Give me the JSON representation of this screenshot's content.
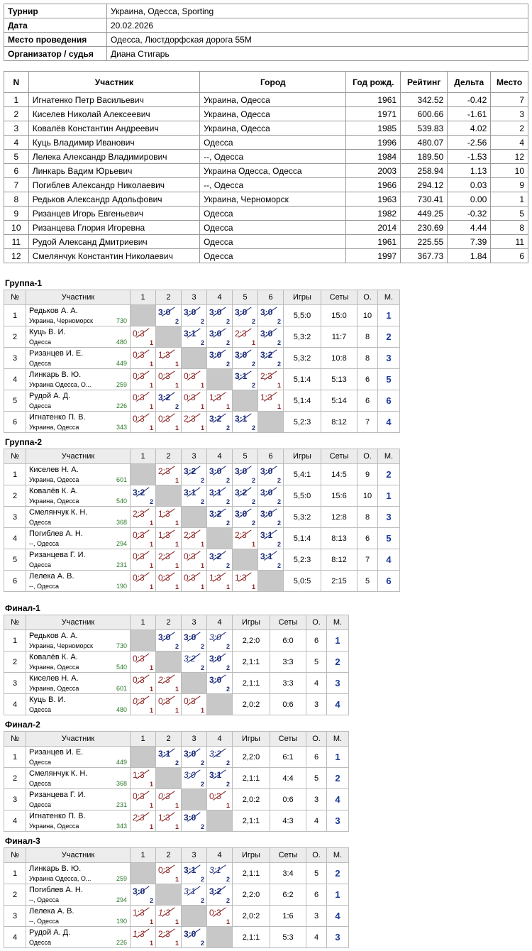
{
  "info": {
    "rows": [
      [
        "Турнир",
        "Украина, Одесса, Sporting"
      ],
      [
        "Дата",
        "20.02.2026"
      ],
      [
        "Место проведения",
        "Одесса, Люстдорфская дорога 55М"
      ],
      [
        "Организатор / судья",
        "Диана Стигарь"
      ]
    ]
  },
  "participants": {
    "columns": [
      "N",
      "Участник",
      "Город",
      "Год рожд.",
      "Рейтинг",
      "Дельта",
      "Место"
    ],
    "rows": [
      [
        1,
        "Игнатенко Петр Васильевич",
        "Украина, Одесса",
        1961,
        "342.52",
        "-0.42",
        7
      ],
      [
        2,
        "Киселев Николай Алексеевич",
        "Украина, Одесса",
        1971,
        "600.66",
        "-1.61",
        3
      ],
      [
        3,
        "Ковалёв Константин Андреевич",
        "Украина, Одесса",
        1985,
        "539.83",
        "4.02",
        2
      ],
      [
        4,
        "Куць Владимир Иванович",
        "Одесса",
        1996,
        "480.07",
        "-2.56",
        4
      ],
      [
        5,
        "Лелека Александр Владимирович",
        "--, Одесса",
        1984,
        "189.50",
        "-1.53",
        12
      ],
      [
        6,
        "Линкарь Вадим Юрьевич",
        "Украина Одесса, Одесса",
        2003,
        "258.94",
        "1.13",
        10
      ],
      [
        7,
        "Погиблев Александр Николаевич",
        "--, Одесса",
        1966,
        "294.12",
        "0.03",
        9
      ],
      [
        8,
        "Редьков Александр Адольфович",
        "Украина, Черноморск",
        1963,
        "730.41",
        "0.00",
        1
      ],
      [
        9,
        "Ризанцев Игорь Евгеньевич",
        "Одесса",
        1982,
        "449.25",
        "-0.32",
        5
      ],
      [
        10,
        "Ризанцева Глория Игоревна",
        "Одесса",
        2014,
        "230.69",
        "4.44",
        8
      ],
      [
        11,
        "Рудой Александ Дмитриевич",
        "Одесса",
        1961,
        "225.55",
        "7.39",
        11
      ],
      [
        12,
        "Смелянчук Константин Николаевич",
        "Одесса",
        1997,
        "367.73",
        "1.84",
        6
      ]
    ]
  },
  "groups": [
    {
      "title": "Группа-1",
      "columns": [
        "№",
        "Участник",
        "1",
        "2",
        "3",
        "4",
        "5",
        "6",
        "Игры",
        "Сеты",
        "О.",
        "М."
      ],
      "rows": [
        {
          "n": 1,
          "name": "Редьков А. А.",
          "city": "Украина, Черноморск",
          "rating": 730,
          "results": [
            null,
            {
              "score": "3:0",
              "pts": 2
            },
            {
              "score": "3:0",
              "pts": 2
            },
            {
              "score": "3:0",
              "pts": 2
            },
            {
              "score": "3:0",
              "pts": 2
            },
            {
              "score": "3:0",
              "pts": 2
            }
          ],
          "games": "5,5:0",
          "sets": "15:0",
          "points": 10,
          "place": 1
        },
        {
          "n": 2,
          "name": "Куць В. И.",
          "city": "Одесса",
          "rating": 480,
          "results": [
            {
              "score": "0:3",
              "pts": 1
            },
            null,
            {
              "score": "3:1",
              "pts": 2
            },
            {
              "score": "3:0",
              "pts": 2
            },
            {
              "score": "2:3",
              "pts": 1
            },
            {
              "score": "3:0",
              "pts": 2
            }
          ],
          "games": "5,3:2",
          "sets": "11:7",
          "points": 8,
          "place": 2
        },
        {
          "n": 3,
          "name": "Ризанцев И. Е.",
          "city": "Одесса",
          "rating": 449,
          "results": [
            {
              "score": "0:3",
              "pts": 1
            },
            {
              "score": "1:3",
              "pts": 1
            },
            null,
            {
              "score": "3:0",
              "pts": 2
            },
            {
              "score": "3:0",
              "pts": 2
            },
            {
              "score": "3:2",
              "pts": 2
            }
          ],
          "games": "5,3:2",
          "sets": "10:8",
          "points": 8,
          "place": 3
        },
        {
          "n": 4,
          "name": "Линкарь В. Ю.",
          "city": "Украина Одесса, О...",
          "rating": 259,
          "results": [
            {
              "score": "0:3",
              "pts": 1
            },
            {
              "score": "0:3",
              "pts": 1
            },
            {
              "score": "0:3",
              "pts": 1
            },
            null,
            {
              "score": "3:1",
              "pts": 2
            },
            {
              "score": "2:3",
              "pts": 1
            }
          ],
          "games": "5,1:4",
          "sets": "5:13",
          "points": 6,
          "place": 5
        },
        {
          "n": 5,
          "name": "Рудой А. Д.",
          "city": "Одесса",
          "rating": 226,
          "results": [
            {
              "score": "0:3",
              "pts": 1
            },
            {
              "score": "3:2",
              "pts": 2
            },
            {
              "score": "0:3",
              "pts": 1
            },
            {
              "score": "1:3",
              "pts": 1
            },
            null,
            {
              "score": "1:3",
              "pts": 1
            }
          ],
          "games": "5,1:4",
          "sets": "5:14",
          "points": 6,
          "place": 6
        },
        {
          "n": 6,
          "name": "Игнатенко П. В.",
          "city": "Украина, Одесса",
          "rating": 343,
          "results": [
            {
              "score": "0:3",
              "pts": 1
            },
            {
              "score": "0:3",
              "pts": 1
            },
            {
              "score": "2:3",
              "pts": 1
            },
            {
              "score": "3:2",
              "pts": 2
            },
            {
              "score": "3:1",
              "pts": 2
            },
            null
          ],
          "games": "5,2:3",
          "sets": "8:12",
          "points": 7,
          "place": 4
        }
      ]
    },
    {
      "title": "Группа-2",
      "columns": [
        "№",
        "Участник",
        "1",
        "2",
        "3",
        "4",
        "5",
        "6",
        "Игры",
        "Сеты",
        "О.",
        "М."
      ],
      "rows": [
        {
          "n": 1,
          "name": "Киселев Н. А.",
          "city": "Украина, Одесса",
          "rating": 601,
          "results": [
            null,
            {
              "score": "2:3",
              "pts": 1
            },
            {
              "score": "3:2",
              "pts": 2
            },
            {
              "score": "3:0",
              "pts": 2
            },
            {
              "score": "3:0",
              "pts": 2
            },
            {
              "score": "3:0",
              "pts": 2
            }
          ],
          "games": "5,4:1",
          "sets": "14:5",
          "points": 9,
          "place": 2
        },
        {
          "n": 2,
          "name": "Ковалёв К. А.",
          "city": "Украина, Одесса",
          "rating": 540,
          "results": [
            {
              "score": "3:2",
              "pts": 2
            },
            null,
            {
              "score": "3:1",
              "pts": 2
            },
            {
              "score": "3:1",
              "pts": 2
            },
            {
              "score": "3:2",
              "pts": 2
            },
            {
              "score": "3:0",
              "pts": 2
            }
          ],
          "games": "5,5:0",
          "sets": "15:6",
          "points": 10,
          "place": 1
        },
        {
          "n": 3,
          "name": "Смелянчук К. Н.",
          "city": "Одесса",
          "rating": 368,
          "results": [
            {
              "score": "2:3",
              "pts": 1
            },
            {
              "score": "1:3",
              "pts": 1
            },
            null,
            {
              "score": "3:2",
              "pts": 2
            },
            {
              "score": "3:0",
              "pts": 2
            },
            {
              "score": "3:0",
              "pts": 2
            }
          ],
          "games": "5,3:2",
          "sets": "12:8",
          "points": 8,
          "place": 3
        },
        {
          "n": 4,
          "name": "Погиблев А. Н.",
          "city": "--, Одесса",
          "rating": 294,
          "results": [
            {
              "score": "0:3",
              "pts": 1
            },
            {
              "score": "1:3",
              "pts": 1
            },
            {
              "score": "2:3",
              "pts": 1
            },
            null,
            {
              "score": "2:3",
              "pts": 1
            },
            {
              "score": "3:1",
              "pts": 2
            }
          ],
          "games": "5,1:4",
          "sets": "8:13",
          "points": 6,
          "place": 5
        },
        {
          "n": 5,
          "name": "Ризанцева Г. И.",
          "city": "Одесса",
          "rating": 231,
          "results": [
            {
              "score": "0:3",
              "pts": 1
            },
            {
              "score": "2:3",
              "pts": 1
            },
            {
              "score": "0:3",
              "pts": 1
            },
            {
              "score": "3:2",
              "pts": 2
            },
            null,
            {
              "score": "3:1",
              "pts": 2
            }
          ],
          "games": "5,2:3",
          "sets": "8:12",
          "points": 7,
          "place": 4
        },
        {
          "n": 6,
          "name": "Лелека А. В.",
          "city": "--, Одесса",
          "rating": 190,
          "results": [
            {
              "score": "0:3",
              "pts": 1
            },
            {
              "score": "0:3",
              "pts": 1
            },
            {
              "score": "0:3",
              "pts": 1
            },
            {
              "score": "1:3",
              "pts": 1
            },
            {
              "score": "1:3",
              "pts": 1
            },
            null
          ],
          "games": "5,0:5",
          "sets": "2:15",
          "points": 5,
          "place": 6
        }
      ]
    },
    {
      "title": "Финал-1",
      "columns": [
        "№",
        "Участник",
        "1",
        "2",
        "3",
        "4",
        "Игры",
        "Сеты",
        "О.",
        "М."
      ],
      "rows": [
        {
          "n": 1,
          "name": "Редьков А. А.",
          "city": "Украина, Черноморск",
          "rating": 730,
          "results": [
            null,
            {
              "score": "3:0",
              "pts": 2
            },
            {
              "score": "3:0",
              "pts": 2
            },
            {
              "score": "3:0",
              "pts": 2,
              "italic": true
            }
          ],
          "games": "2,2:0",
          "sets": "6:0",
          "points": 6,
          "place": 1
        },
        {
          "n": 2,
          "name": "Ковалёв К. А.",
          "city": "Украина, Одесса",
          "rating": 540,
          "results": [
            {
              "score": "0:3",
              "pts": 1
            },
            null,
            {
              "score": "3:2",
              "pts": 2,
              "italic": true
            },
            {
              "score": "3:0",
              "pts": 2
            }
          ],
          "games": "2,1:1",
          "sets": "3:3",
          "points": 5,
          "place": 2
        },
        {
          "n": 3,
          "name": "Киселев Н. А.",
          "city": "Украина, Одесса",
          "rating": 601,
          "results": [
            {
              "score": "0:3",
              "pts": 1
            },
            {
              "score": "2:3",
              "pts": 1,
              "italic": true
            },
            null,
            {
              "score": "3:0",
              "pts": 2
            }
          ],
          "games": "2,1:1",
          "sets": "3:3",
          "points": 4,
          "place": 3
        },
        {
          "n": 4,
          "name": "Куць В. И.",
          "city": "Одесса",
          "rating": 480,
          "results": [
            {
              "score": "0:3",
              "pts": 1,
              "italic": true
            },
            {
              "score": "0:3",
              "pts": 1
            },
            {
              "score": "0:3",
              "pts": 1
            },
            null
          ],
          "games": "2,0:2",
          "sets": "0:6",
          "points": 3,
          "place": 4
        }
      ]
    },
    {
      "title": "Финал-2",
      "columns": [
        "№",
        "Участник",
        "1",
        "2",
        "3",
        "4",
        "Игры",
        "Сеты",
        "О.",
        "М."
      ],
      "rows": [
        {
          "n": 1,
          "name": "Ризанцев И. Е.",
          "city": "Одесса",
          "rating": 449,
          "results": [
            null,
            {
              "score": "3:1",
              "pts": 2
            },
            {
              "score": "3:0",
              "pts": 2
            },
            {
              "score": "3:2",
              "pts": 2,
              "italic": true
            }
          ],
          "games": "2,2:0",
          "sets": "6:1",
          "points": 6,
          "place": 1
        },
        {
          "n": 2,
          "name": "Смелянчук К. Н.",
          "city": "Одесса",
          "rating": 368,
          "results": [
            {
              "score": "1:3",
              "pts": 1
            },
            null,
            {
              "score": "3:0",
              "pts": 2,
              "italic": true
            },
            {
              "score": "3:1",
              "pts": 2
            }
          ],
          "games": "2,1:1",
          "sets": "4:4",
          "points": 5,
          "place": 2
        },
        {
          "n": 3,
          "name": "Ризанцева Г. И.",
          "city": "Одесса",
          "rating": 231,
          "results": [
            {
              "score": "0:3",
              "pts": 1
            },
            {
              "score": "0:3",
              "pts": 1,
              "italic": true
            },
            null,
            {
              "score": "0:3",
              "pts": 1
            }
          ],
          "games": "2,0:2",
          "sets": "0:6",
          "points": 3,
          "place": 4
        },
        {
          "n": 4,
          "name": "Игнатенко П. В.",
          "city": "Украина, Одесса",
          "rating": 343,
          "results": [
            {
              "score": "2:3",
              "pts": 1,
              "italic": true
            },
            {
              "score": "1:3",
              "pts": 1
            },
            {
              "score": "3:0",
              "pts": 2
            },
            null
          ],
          "games": "2,1:1",
          "sets": "4:3",
          "points": 4,
          "place": 3
        }
      ]
    },
    {
      "title": "Финал-3",
      "columns": [
        "№",
        "Участник",
        "1",
        "2",
        "3",
        "4",
        "Игры",
        "Сеты",
        "О.",
        "М."
      ],
      "rows": [
        {
          "n": 1,
          "name": "Линкарь В. Ю.",
          "city": "Украина Одесса, О...",
          "rating": 259,
          "results": [
            null,
            {
              "score": "0:3",
              "pts": 1
            },
            {
              "score": "3:1",
              "pts": 2
            },
            {
              "score": "3:1",
              "pts": 2,
              "italic": true
            }
          ],
          "games": "2,1:1",
          "sets": "3:4",
          "points": 5,
          "place": 2
        },
        {
          "n": 2,
          "name": "Погиблев А. Н.",
          "city": "--, Одесса",
          "rating": 294,
          "results": [
            {
              "score": "3:0",
              "pts": 2
            },
            null,
            {
              "score": "3:1",
              "pts": 2,
              "italic": true
            },
            {
              "score": "3:2",
              "pts": 2
            }
          ],
          "games": "2,2:0",
          "sets": "6:2",
          "points": 6,
          "place": 1
        },
        {
          "n": 3,
          "name": "Лелека А. В.",
          "city": "--, Одесса",
          "rating": 190,
          "results": [
            {
              "score": "1:3",
              "pts": 1
            },
            {
              "score": "1:3",
              "pts": 1,
              "italic": true
            },
            null,
            {
              "score": "0:3",
              "pts": 1
            }
          ],
          "games": "2,0:2",
          "sets": "1:6",
          "points": 3,
          "place": 4
        },
        {
          "n": 4,
          "name": "Рудой А. Д.",
          "city": "Одесса",
          "rating": 226,
          "results": [
            {
              "score": "1:3",
              "pts": 1,
              "italic": true
            },
            {
              "score": "2:3",
              "pts": 1
            },
            {
              "score": "3:0",
              "pts": 2
            },
            null
          ],
          "games": "2,1:1",
          "sets": "5:3",
          "points": 4,
          "place": 3
        }
      ]
    }
  ]
}
